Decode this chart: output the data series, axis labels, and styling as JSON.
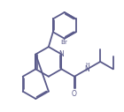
{
  "bg_color": "#ffffff",
  "line_color": "#5a5a8a",
  "text_color": "#5a5a8a",
  "bond_lw": 1.3,
  "figsize": [
    1.4,
    1.27
  ],
  "dpi": 100,
  "xlim": [
    0,
    14
  ],
  "ylim": [
    0,
    12
  ]
}
